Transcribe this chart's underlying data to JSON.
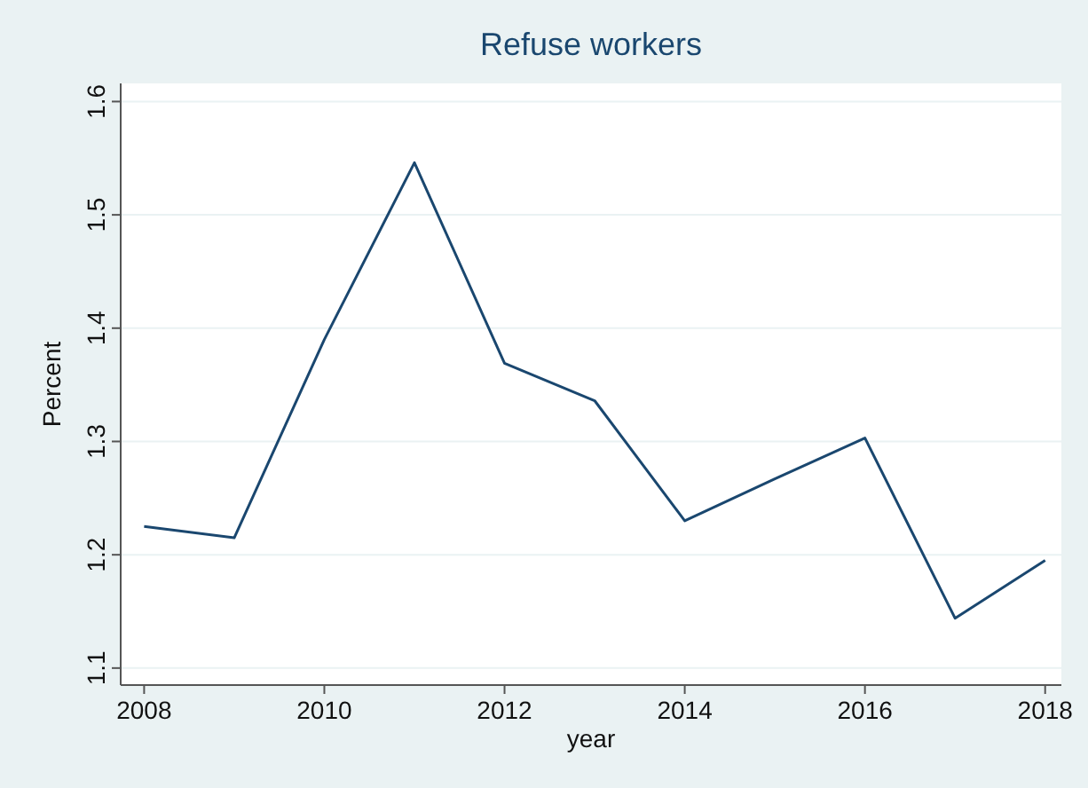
{
  "chart_data": {
    "type": "line",
    "title": "Refuse workers",
    "xlabel": "year",
    "ylabel": "Percent",
    "x": [
      2008,
      2009,
      2010,
      2011,
      2012,
      2013,
      2014,
      2015,
      2016,
      2017,
      2018
    ],
    "series": [
      {
        "color": "#1a476f",
        "values": [
          1.225,
          1.215,
          1.39,
          1.546,
          1.369,
          1.336,
          1.23,
          1.267,
          1.303,
          1.144,
          1.195
        ]
      }
    ],
    "xlim": [
      2007.74,
      2018.18
    ],
    "xticks": [
      2008,
      2010,
      2012,
      2014,
      2016,
      2018
    ],
    "ylim": [
      1.085,
      1.616
    ],
    "yticks": [
      {
        "value": 1.1,
        "label": "1.1"
      },
      {
        "value": 1.2,
        "label": "1.2"
      },
      {
        "value": 1.3,
        "label": "1.3"
      },
      {
        "value": 1.4,
        "label": "1.4"
      },
      {
        "value": 1.5,
        "label": "1.5"
      },
      {
        "value": 1.6,
        "label": "1.6"
      }
    ],
    "grid": "y",
    "marker": "none",
    "line_style": "solid"
  }
}
